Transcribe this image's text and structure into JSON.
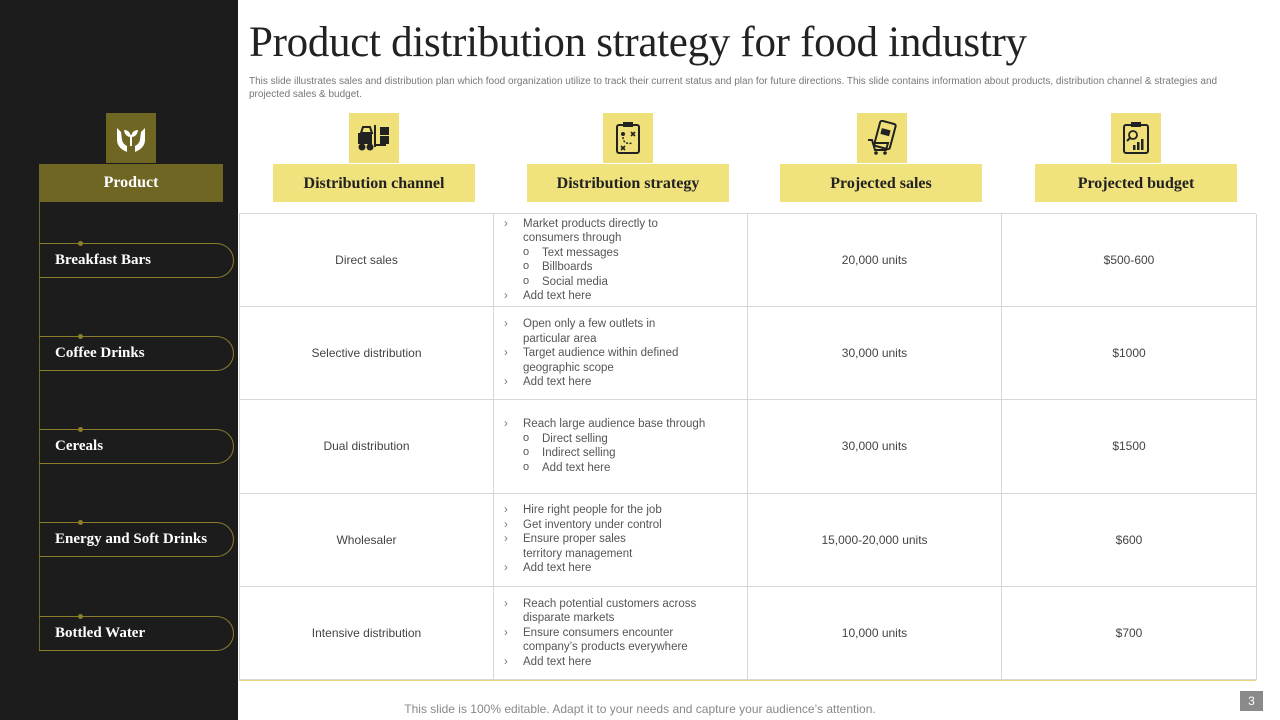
{
  "title": "Product distribution strategy for food industry",
  "subtitle": "This slide illustrates sales and distribution plan which food organization utilize to track their current status and plan for future directions. This slide contains information about products, distribution channel & strategies and projected sales & budget.",
  "colors": {
    "sidebar": "#1c1c1c",
    "olive": "#6f6623",
    "yellow": "#f0e27c"
  },
  "product_header": "Product",
  "product_icon": "hands-plant-icon",
  "products": [
    "Breakfast Bars",
    "Coffee Drinks",
    "Cereals",
    "Energy and Soft Drinks",
    "Bottled Water"
  ],
  "columns": [
    {
      "label": "Distribution channel",
      "icon": "forklift-icon"
    },
    {
      "label": "Distribution strategy",
      "icon": "strategy-board-icon"
    },
    {
      "label": "Projected sales",
      "icon": "mobile-cart-icon"
    },
    {
      "label": "Projected budget",
      "icon": "clipboard-chart-icon"
    }
  ],
  "rows": [
    {
      "channel": "Direct sales",
      "strategy": [
        {
          "level": 1,
          "text": "Market products directly to"
        },
        {
          "level": 0,
          "text": "consumers through"
        },
        {
          "level": 2,
          "text": "Text messages"
        },
        {
          "level": 2,
          "text": "Billboards"
        },
        {
          "level": 2,
          "text": "Social media"
        },
        {
          "level": 1,
          "text": "Add text here"
        }
      ],
      "sales": "20,000 units",
      "budget": "$500-600"
    },
    {
      "channel": "Selective distribution",
      "strategy": [
        {
          "level": 1,
          "text": "Open only a few outlets in"
        },
        {
          "level": 0,
          "text": "particular area"
        },
        {
          "level": 1,
          "text": "Target audience within defined"
        },
        {
          "level": 0,
          "text": "geographic scope"
        },
        {
          "level": 1,
          "text": "Add text here"
        }
      ],
      "sales": "30,000 units",
      "budget": "$1000"
    },
    {
      "channel": "Dual distribution",
      "strategy": [
        {
          "level": 1,
          "text": "Reach large audience base through"
        },
        {
          "level": 2,
          "text": "Direct selling"
        },
        {
          "level": 2,
          "text": "Indirect selling"
        },
        {
          "level": 2,
          "text": "Add text here"
        }
      ],
      "sales": "30,000 units",
      "budget": "$1500"
    },
    {
      "channel": "Wholesaler",
      "strategy": [
        {
          "level": 1,
          "text": "Hire right people for the job"
        },
        {
          "level": 1,
          "text": "Get inventory under control"
        },
        {
          "level": 1,
          "text": "Ensure proper sales"
        },
        {
          "level": 0,
          "text": "territory management"
        },
        {
          "level": 1,
          "text": "Add text here"
        }
      ],
      "sales": "15,000-20,000 units",
      "budget": "$600"
    },
    {
      "channel": "Intensive distribution",
      "strategy": [
        {
          "level": 1,
          "text": "Reach potential customers across"
        },
        {
          "level": 0,
          "text": "disparate markets"
        },
        {
          "level": 1,
          "text": "Ensure consumers encounter"
        },
        {
          "level": 0,
          "text": "company’s products everywhere"
        },
        {
          "level": 1,
          "text": "Add text here"
        }
      ],
      "sales": "10,000 units",
      "budget": "$700"
    }
  ],
  "footer": "This slide is 100% editable. Adapt it to your needs and capture your audience’s attention.",
  "page_number": "3"
}
